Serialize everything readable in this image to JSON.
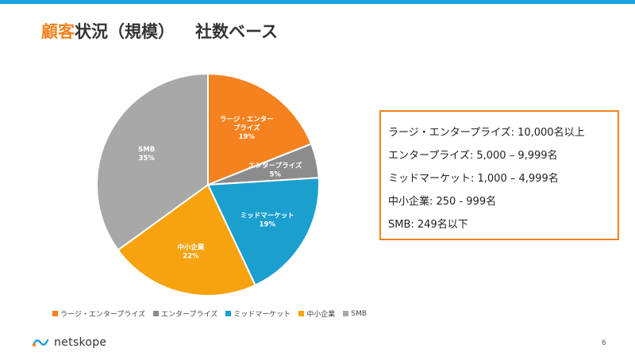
{
  "slide": {
    "title_highlight": "顧客",
    "title_rest": "状況（規模）",
    "title_suffix": "社数ベース",
    "page_number": "6",
    "accent_color": "#f5821f",
    "topbar_color": "#1ba3dc"
  },
  "chart_data": {
    "type": "pie",
    "categories": [
      "ラージ・エンタープライズ",
      "エンタープライズ",
      "ミッドマーケット",
      "中小企業",
      "SMB"
    ],
    "values": [
      19,
      5,
      19,
      22,
      35
    ],
    "unit": "%",
    "slice_labels": [
      [
        "ラージ・エンター",
        "プライズ"
      ],
      [
        "エンタープライズ"
      ],
      [
        "ミッドマーケット"
      ],
      [
        "中小企業"
      ],
      [
        "SMB"
      ]
    ],
    "colors": [
      "#f5821f",
      "#8c8c8c",
      "#1a9fcf",
      "#f7a30f",
      "#a8a8a8"
    ],
    "legend_position": "bottom",
    "start_angle": "12 o'clock",
    "direction": "clockwise"
  },
  "infobox": {
    "lines": [
      "ラージ・エンタープライズ: 10,000名以上",
      "エンタープライズ: 5,000 – 9,999名",
      "ミッドマーケット: 1,000 – 4,999名",
      "中小企業: 250 - 999名",
      "SMB: 249名以下"
    ]
  },
  "footer": {
    "logo_text": "netskope",
    "logo_icon": "netskope-logo-icon"
  }
}
